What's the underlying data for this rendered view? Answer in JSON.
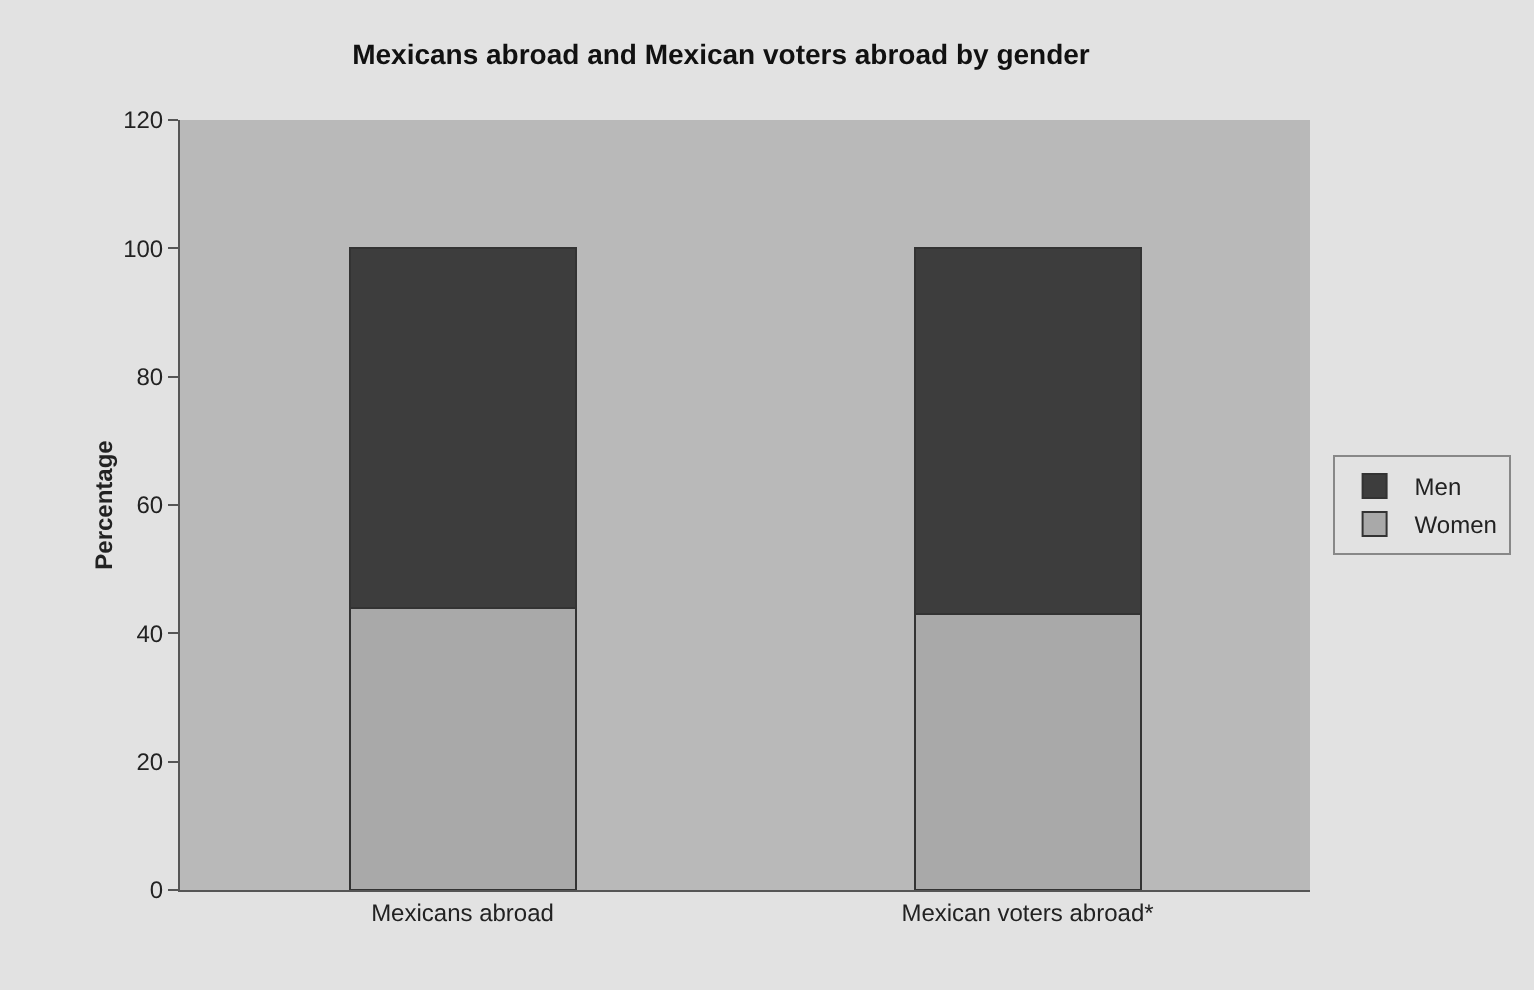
{
  "chart_data": {
    "type": "bar",
    "stacked": true,
    "title": "Mexicans abroad and Mexican voters abroad by gender",
    "ylabel": "Percentage",
    "categories": [
      "Mexicans abroad",
      "Mexican voters abroad*"
    ],
    "series": [
      {
        "name": "Women",
        "color": "#a9a9a9",
        "values": [
          44,
          43
        ]
      },
      {
        "name": "Men",
        "color": "#3d3d3d",
        "values": [
          56,
          57
        ]
      }
    ],
    "ylim": [
      0,
      120
    ],
    "yticks": [
      0,
      20,
      40,
      60,
      80,
      100,
      120
    ],
    "legend": "right"
  }
}
